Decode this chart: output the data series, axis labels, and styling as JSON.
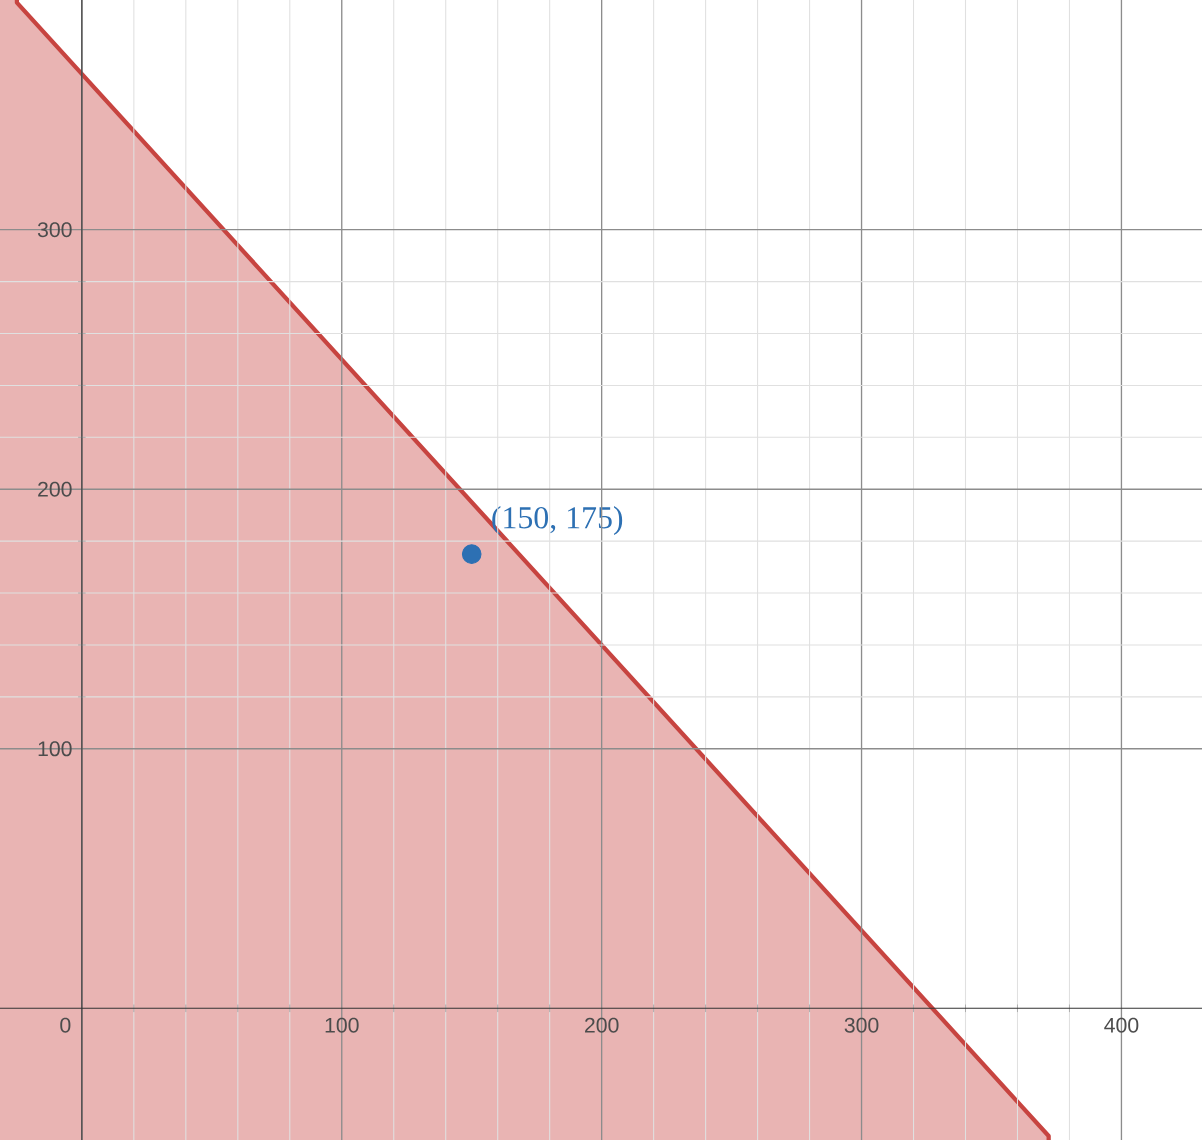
{
  "chart_data": {
    "type": "area",
    "xlim": [
      -31.5,
      431
    ],
    "ylim": [
      -51,
      388.5
    ],
    "xticks": [
      0,
      100,
      200,
      300,
      400
    ],
    "yticks": [
      100,
      200,
      300
    ],
    "grid": true,
    "series": [
      {
        "color": "#c74440",
        "x": [
          -25,
          372
        ],
        "values": [
          387.5,
          -49.2
        ]
      },
      {
        "type": "scatter",
        "color": "#2d70b3",
        "x": [
          150
        ],
        "values": [
          175
        ]
      }
    ],
    "annotations": [
      {
        "text": "(150, 175)",
        "x": 150,
        "y": 175
      }
    ]
  }
}
